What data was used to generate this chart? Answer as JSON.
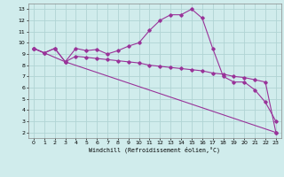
{
  "xlabel": "Windchill (Refroidissement éolien,°C)",
  "background_color": "#d0ecec",
  "line_color": "#993399",
  "grid_color": "#b0d4d4",
  "x_ticks": [
    0,
    1,
    2,
    3,
    4,
    5,
    6,
    7,
    8,
    9,
    10,
    11,
    12,
    13,
    14,
    15,
    16,
    17,
    18,
    19,
    20,
    21,
    22,
    23
  ],
  "y_ticks": [
    2,
    3,
    4,
    5,
    6,
    7,
    8,
    9,
    10,
    11,
    12,
    13
  ],
  "xlim": [
    -0.5,
    23.5
  ],
  "ylim": [
    1.5,
    13.5
  ],
  "line1_x": [
    0,
    1,
    2,
    3,
    4,
    5,
    6,
    7,
    8,
    9,
    10,
    11,
    12,
    13,
    14,
    15,
    16,
    17,
    18,
    19,
    20,
    21,
    22,
    23
  ],
  "line1_y": [
    9.5,
    9.1,
    9.5,
    8.3,
    9.5,
    9.3,
    9.4,
    9.0,
    9.3,
    9.7,
    10.0,
    11.1,
    12.0,
    12.5,
    12.5,
    13.0,
    12.2,
    9.5,
    7.0,
    6.5,
    6.5,
    5.8,
    4.7,
    3.0
  ],
  "line2_x": [
    0,
    1,
    2,
    3,
    4,
    5,
    6,
    7,
    8,
    9,
    10,
    11,
    12,
    13,
    14,
    15,
    16,
    17,
    18,
    19,
    20,
    21,
    22,
    23
  ],
  "line2_y": [
    9.5,
    9.1,
    9.5,
    8.3,
    8.8,
    8.7,
    8.6,
    8.5,
    8.4,
    8.3,
    8.2,
    8.0,
    7.9,
    7.8,
    7.7,
    7.6,
    7.5,
    7.3,
    7.2,
    7.0,
    6.9,
    6.7,
    6.5,
    2.0
  ],
  "line3_x": [
    0,
    3,
    23
  ],
  "line3_y": [
    9.5,
    8.3,
    2.0
  ]
}
